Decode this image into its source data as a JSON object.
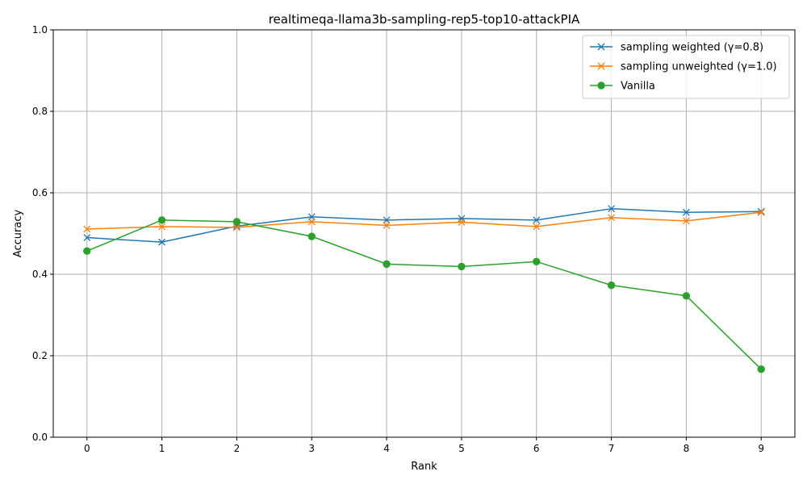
{
  "chart_data": {
    "type": "line",
    "title": "realtimeqa-llama3b-sampling-rep5-top10-attackPIA",
    "xlabel": "Rank",
    "ylabel": "Accuracy",
    "x": [
      0,
      1,
      2,
      3,
      4,
      5,
      6,
      7,
      8,
      9
    ],
    "xticks": [
      "0",
      "1",
      "2",
      "3",
      "4",
      "5",
      "6",
      "7",
      "8",
      "9"
    ],
    "xlim": [
      -0.45,
      9.45
    ],
    "ylim": [
      0.0,
      1.0
    ],
    "yticks": [
      "0.0",
      "0.2",
      "0.4",
      "0.6",
      "0.8",
      "1.0"
    ],
    "grid": true,
    "legend_position": "top-right",
    "series": [
      {
        "name": "sampling weighted (γ=0.8)",
        "color": "#1f77b4",
        "marker": "x",
        "values": [
          0.49,
          0.479,
          0.518,
          0.541,
          0.533,
          0.537,
          0.533,
          0.561,
          0.552,
          0.554
        ]
      },
      {
        "name": "sampling unweighted (γ=1.0)",
        "color": "#ff7f0e",
        "marker": "x",
        "values": [
          0.511,
          0.517,
          0.515,
          0.529,
          0.52,
          0.528,
          0.517,
          0.539,
          0.531,
          0.552
        ]
      },
      {
        "name": "Vanilla",
        "color": "#2ca02c",
        "marker": "o",
        "values": [
          0.457,
          0.533,
          0.529,
          0.493,
          0.425,
          0.419,
          0.431,
          0.373,
          0.347,
          0.167
        ]
      }
    ]
  }
}
